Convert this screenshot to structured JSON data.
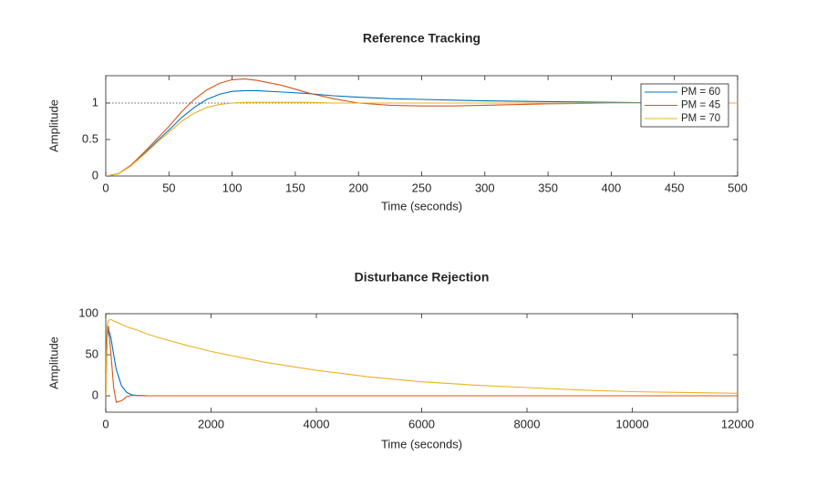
{
  "chart_data": [
    {
      "type": "line",
      "title": "Reference Tracking",
      "xlabel": "Time (seconds)",
      "ylabel": "Amplitude",
      "x": [
        0,
        10,
        20,
        30,
        40,
        50,
        60,
        70,
        80,
        90,
        100,
        110,
        120,
        140,
        160,
        180,
        200,
        225,
        250,
        275,
        300,
        350,
        400,
        450,
        500
      ],
      "series": [
        {
          "name": "PM = 60",
          "color": "#0072bd",
          "values": [
            0,
            0.03,
            0.14,
            0.3,
            0.47,
            0.63,
            0.8,
            0.94,
            1.05,
            1.12,
            1.16,
            1.17,
            1.17,
            1.15,
            1.13,
            1.1,
            1.08,
            1.06,
            1.05,
            1.04,
            1.03,
            1.02,
            1.01,
            1.0,
            1.0
          ]
        },
        {
          "name": "PM = 45",
          "color": "#d95319",
          "values": [
            0,
            0.03,
            0.15,
            0.32,
            0.5,
            0.68,
            0.88,
            1.05,
            1.18,
            1.27,
            1.32,
            1.33,
            1.31,
            1.24,
            1.14,
            1.06,
            1.0,
            0.97,
            0.96,
            0.96,
            0.97,
            0.99,
            1.0,
            1.0,
            1.0
          ]
        },
        {
          "name": "PM = 70",
          "color": "#edb120",
          "values": [
            0,
            0.03,
            0.14,
            0.29,
            0.45,
            0.6,
            0.75,
            0.86,
            0.94,
            0.98,
            1.0,
            1.01,
            1.01,
            1.01,
            1.01,
            1.0,
            1.0,
            1.0,
            1.0,
            1.0,
            1.0,
            1.0,
            1.0,
            1.0,
            1.0
          ]
        }
      ],
      "reference_line": 1,
      "xlim": [
        0,
        500
      ],
      "xticks": [
        0,
        50,
        100,
        150,
        200,
        250,
        300,
        350,
        400,
        450,
        500
      ],
      "ylim": [
        0,
        1.375
      ],
      "yticks": [
        0,
        0.5,
        1
      ],
      "legend": "northeast"
    },
    {
      "type": "line",
      "title": "Disturbance Rejection",
      "xlabel": "Time (seconds)",
      "ylabel": "Amplitude",
      "x": [
        0,
        25,
        50,
        100,
        150,
        200,
        300,
        400,
        500,
        600,
        800,
        1000,
        1500,
        2000,
        3000,
        4000,
        5000,
        6000,
        7000,
        8000,
        9000,
        10000,
        11000,
        12000
      ],
      "series": [
        {
          "name": "PM = 60",
          "color": "#0072bd",
          "values": [
            0,
            70,
            82,
            70,
            50,
            32,
            12,
            4,
            1,
            0.3,
            0,
            0,
            0,
            0,
            0,
            0,
            0,
            0,
            0,
            0,
            0,
            0,
            0,
            0
          ]
        },
        {
          "name": "PM = 45",
          "color": "#d95319",
          "values": [
            0,
            80,
            85,
            50,
            10,
            -8,
            -6,
            -1,
            0.5,
            0.3,
            0,
            0,
            0,
            0,
            0,
            0,
            0,
            0,
            0,
            0,
            0,
            0,
            0,
            0
          ]
        },
        {
          "name": "PM = 70",
          "color": "#edb120",
          "values": [
            0,
            85,
            92,
            93,
            91,
            90,
            87,
            84,
            82,
            80,
            75,
            71,
            62,
            54,
            41,
            31,
            23,
            17,
            13,
            10,
            7,
            5,
            4,
            3
          ]
        }
      ],
      "xlim": [
        0,
        12000
      ],
      "xticks": [
        0,
        2000,
        4000,
        6000,
        8000,
        10000,
        12000
      ],
      "ylim": [
        -20,
        100
      ],
      "yticks": [
        0,
        50,
        100
      ]
    }
  ]
}
